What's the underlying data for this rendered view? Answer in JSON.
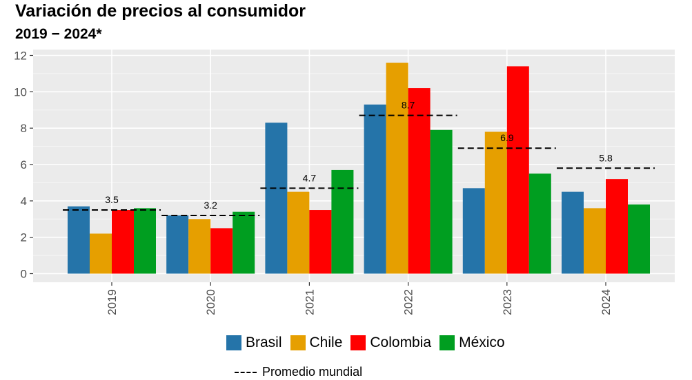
{
  "header": {
    "title": "Variación de precios al consumidor",
    "subtitle": "2019 − 2024*"
  },
  "chart_data": {
    "type": "bar",
    "categories": [
      "2019",
      "2020",
      "2021",
      "2022",
      "2023",
      "2024"
    ],
    "series": [
      {
        "name": "Brasil",
        "color": "#2574a9",
        "values": [
          3.7,
          3.2,
          8.3,
          9.3,
          4.7,
          4.5
        ]
      },
      {
        "name": "Chile",
        "color": "#e69f00",
        "values": [
          2.2,
          3.0,
          4.5,
          11.6,
          7.8,
          3.6
        ]
      },
      {
        "name": "Colombia",
        "color": "#ff0000",
        "values": [
          3.5,
          2.5,
          3.5,
          10.2,
          11.4,
          5.2
        ]
      },
      {
        "name": "México",
        "color": "#009e20",
        "values": [
          3.6,
          3.4,
          5.7,
          7.9,
          5.5,
          3.8
        ]
      }
    ],
    "world_average": {
      "name": "Promedio mundial",
      "values": [
        3.5,
        3.2,
        4.7,
        8.7,
        6.9,
        5.8
      ],
      "labels": [
        "3.5",
        "3.2",
        "4.7",
        "8.7",
        "6.9",
        "5.8"
      ]
    },
    "yticks": [
      "0",
      "2",
      "4",
      "6",
      "8",
      "10",
      "12"
    ],
    "ylim": [
      0,
      12
    ],
    "xlabel": "",
    "ylabel": "",
    "grid": true,
    "legend_position": "bottom"
  }
}
